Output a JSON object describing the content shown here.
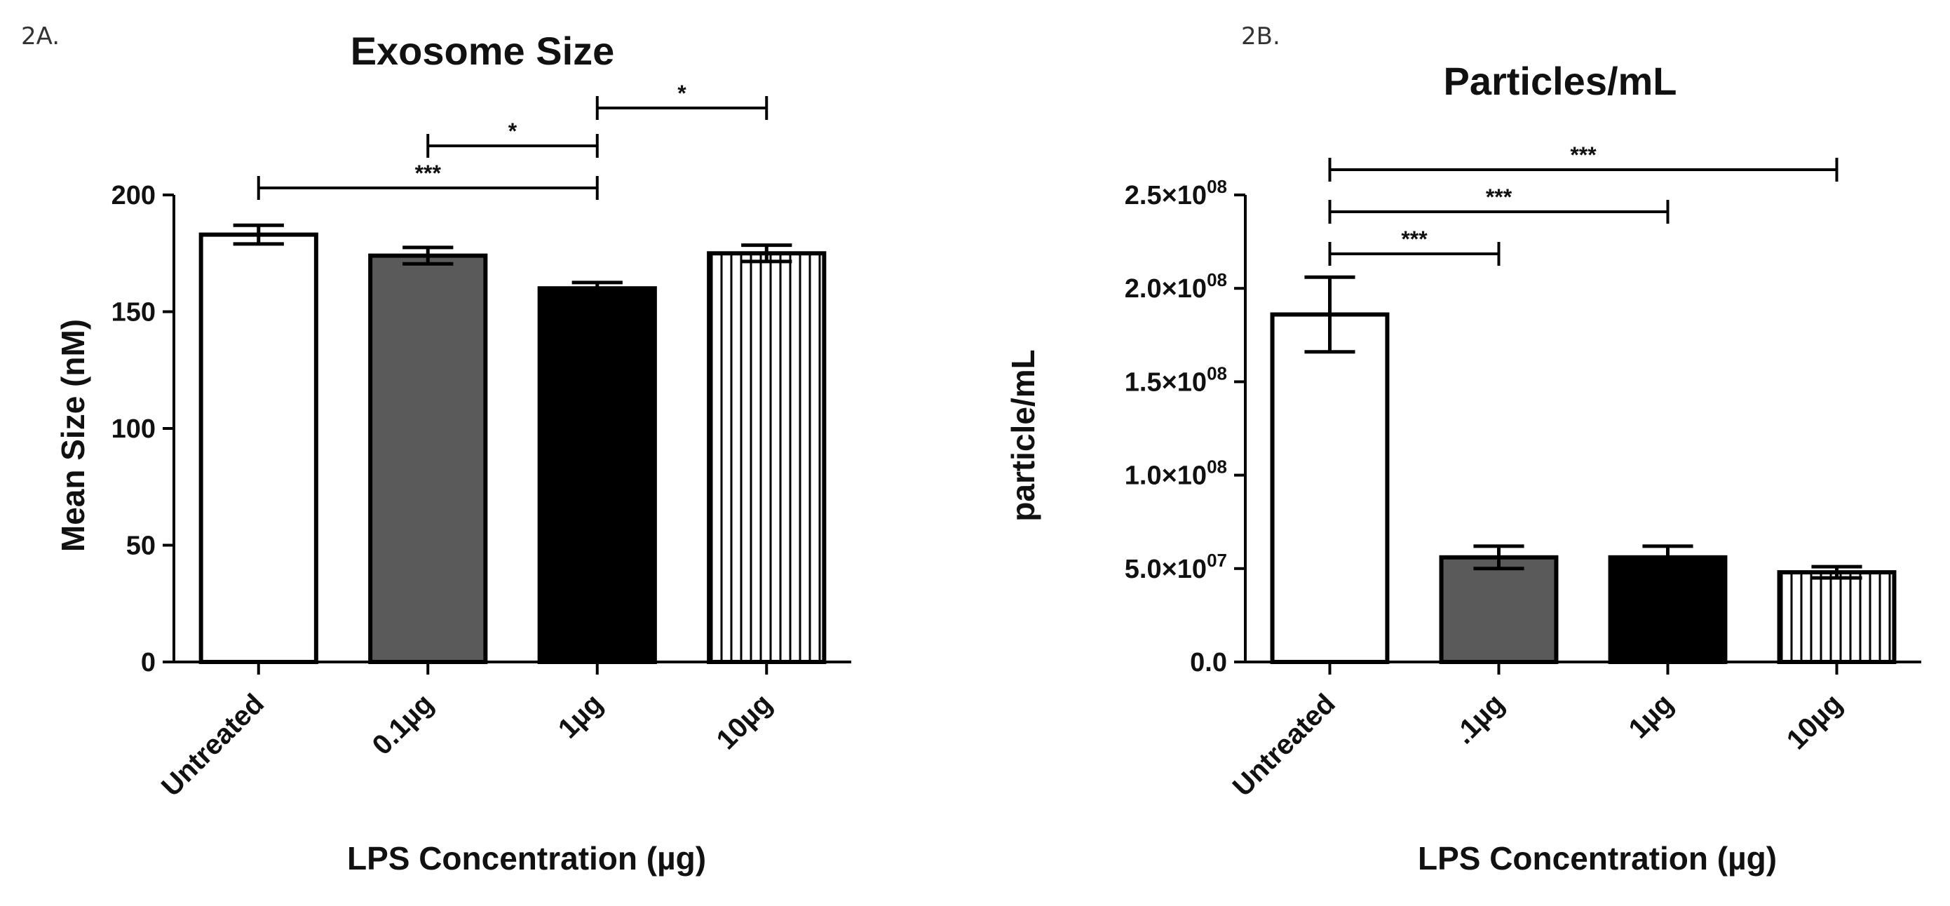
{
  "chart_data": [
    {
      "panel": "2A.",
      "type": "bar",
      "title": "Exosome Size",
      "xlabel": "LPS Concentration (µg)",
      "ylabel": "Mean Size (nM)",
      "ylim": [
        0,
        200
      ],
      "yticks": [
        "0",
        "50",
        "100",
        "150",
        "200"
      ],
      "categories": [
        "Untreated",
        "0.1µg",
        "1µg",
        "10µg"
      ],
      "values": [
        183,
        174,
        160,
        175
      ],
      "errors": [
        4,
        3.5,
        2.5,
        3.5
      ],
      "fills": [
        "#ffffff",
        "#5a5a5a",
        "#000000",
        "stripes"
      ],
      "significance": [
        {
          "from": 0,
          "to": 2,
          "label": "***"
        },
        {
          "from": 1,
          "to": 2,
          "label": "*"
        },
        {
          "from": 2,
          "to": 3,
          "label": "*"
        }
      ]
    },
    {
      "panel": "2B.",
      "type": "bar",
      "title": "Particles/mL",
      "xlabel": "LPS Concentration (µg)",
      "ylabel": "particle/mL",
      "ylim": [
        0,
        250000000
      ],
      "yticks": [
        "0.0",
        "5.0×10",
        "1.0×10",
        "1.5×10",
        "2.0×10",
        "2.5×10"
      ],
      "ytick_exponents": [
        "",
        "07",
        "08",
        "08",
        "08",
        "08"
      ],
      "categories": [
        "Untreated",
        ".1µg",
        "1µg",
        "10µg"
      ],
      "values": [
        186000000,
        56000000,
        56000000,
        48000000
      ],
      "errors": [
        20000000,
        6000000,
        6000000,
        3000000
      ],
      "fills": [
        "#ffffff",
        "#5a5a5a",
        "#000000",
        "stripes"
      ],
      "significance": [
        {
          "from": 0,
          "to": 1,
          "label": "***"
        },
        {
          "from": 0,
          "to": 2,
          "label": "***"
        },
        {
          "from": 0,
          "to": 3,
          "label": "***"
        }
      ]
    }
  ]
}
